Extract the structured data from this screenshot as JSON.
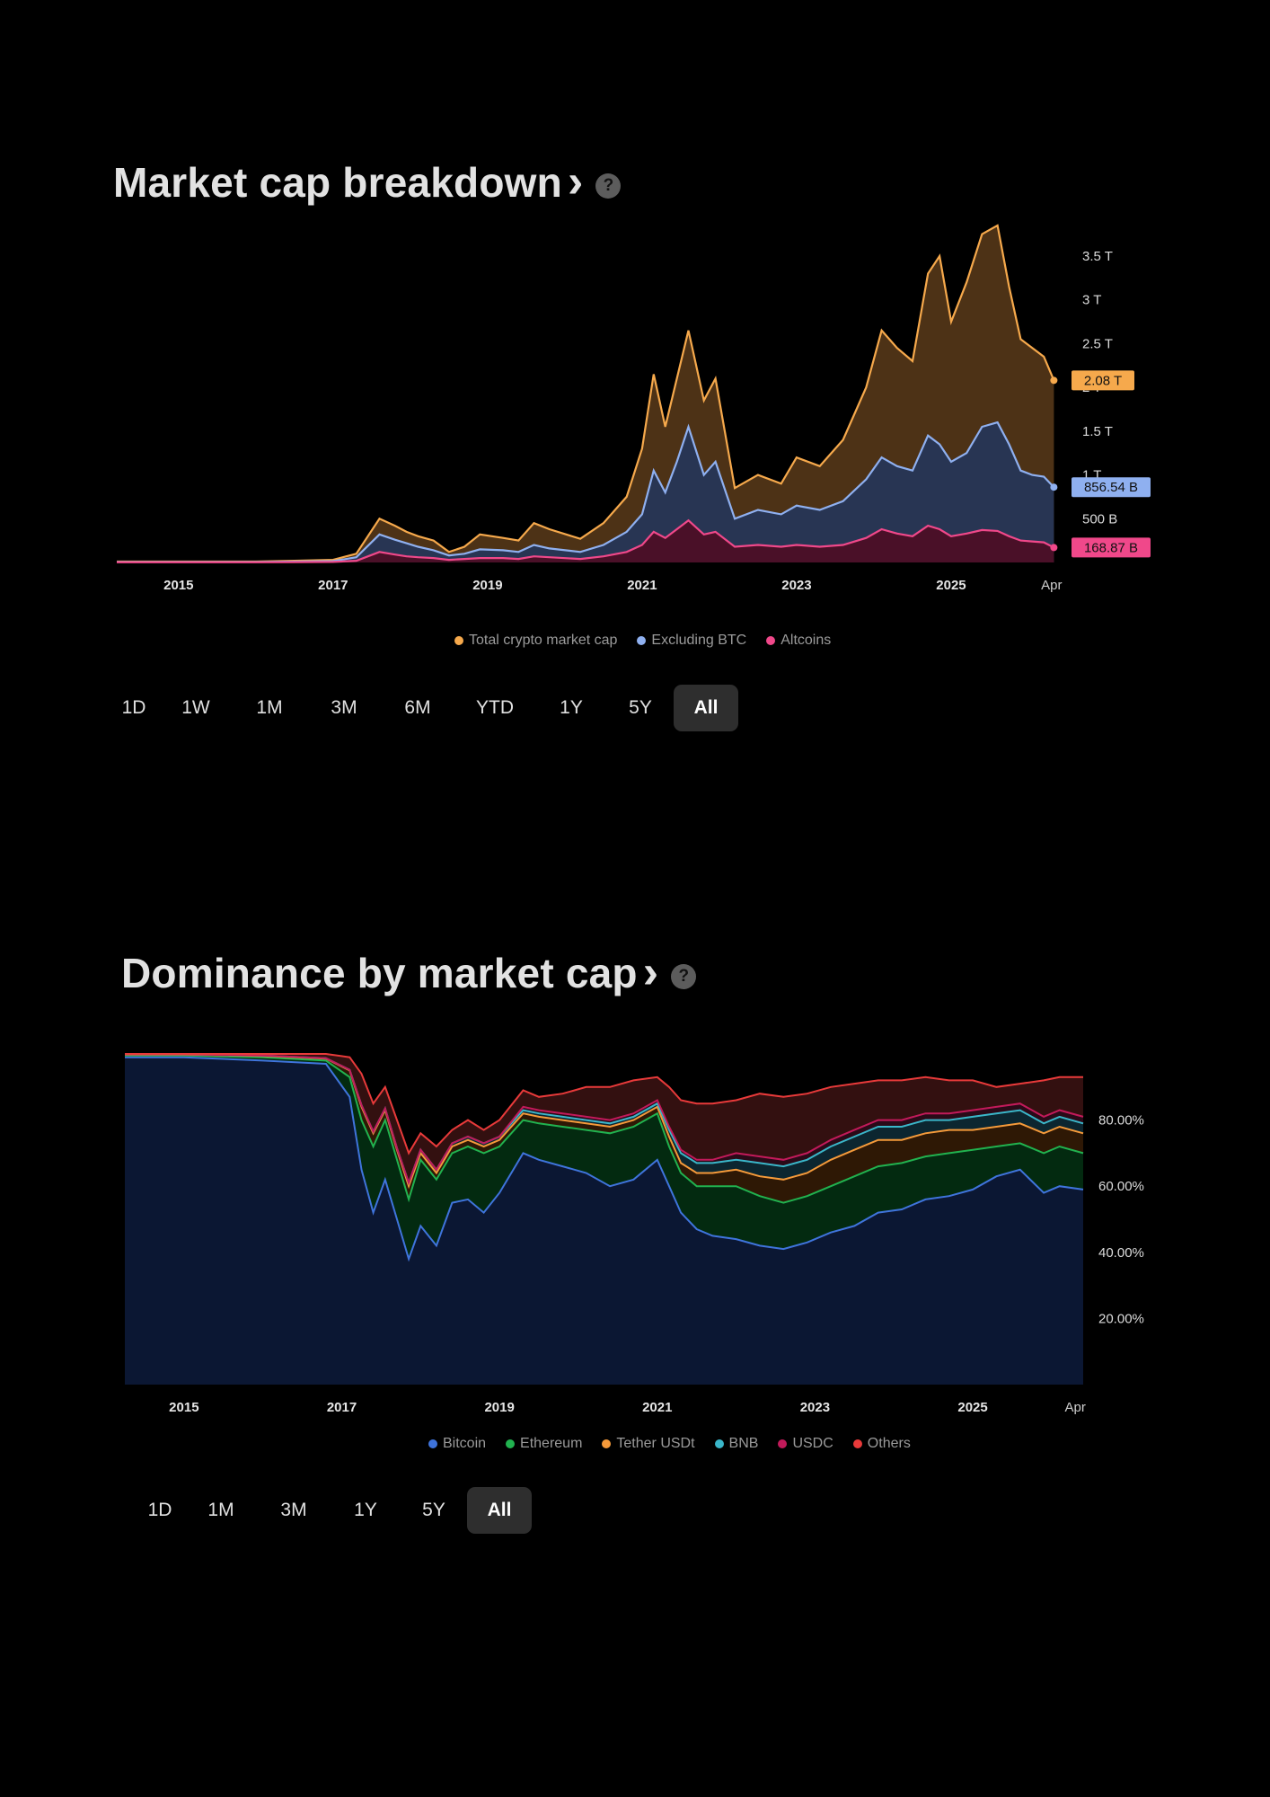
{
  "market_cap": {
    "title": "Market cap breakdown",
    "chevron": "›",
    "help": "?",
    "ranges": [
      "1D",
      "1W",
      "1M",
      "3M",
      "6M",
      "YTD",
      "1Y",
      "5Y",
      "All"
    ],
    "active_range": "All",
    "legend": [
      {
        "label": "Total crypto market cap",
        "color": "#f6a94c"
      },
      {
        "label": "Excluding BTC",
        "color": "#8fb0f0"
      },
      {
        "label": "Altcoins",
        "color": "#f0488a"
      }
    ]
  },
  "dominance": {
    "title": "Dominance by market cap",
    "chevron": "›",
    "help": "?",
    "ranges": [
      "1D",
      "1M",
      "3M",
      "1Y",
      "5Y",
      "All"
    ],
    "active_range": "All",
    "legend": [
      {
        "label": "Bitcoin",
        "color": "#3f74dc"
      },
      {
        "label": "Ethereum",
        "color": "#21b24f"
      },
      {
        "label": "Tether USDt",
        "color": "#f59a3a"
      },
      {
        "label": "BNB",
        "color": "#3ab6c9"
      },
      {
        "label": "USDC",
        "color": "#c21a5a"
      },
      {
        "label": "Others",
        "color": "#e83a3a"
      }
    ]
  },
  "chart_data": [
    {
      "type": "area",
      "xlim": [
        2014.2,
        2026.5
      ],
      "ylim": [
        0,
        3.9
      ],
      "y_ticks": [
        {
          "v": 0.5,
          "label": "500 B"
        },
        {
          "v": 1,
          "label": "1 T"
        },
        {
          "v": 1.5,
          "label": "1.5 T"
        },
        {
          "v": 2,
          "label": "2 T"
        },
        {
          "v": 2.5,
          "label": "2.5 T"
        },
        {
          "v": 3,
          "label": "3 T"
        },
        {
          "v": 3.5,
          "label": "3.5 T"
        }
      ],
      "x_ticks": [
        {
          "v": 2015,
          "label": "2015"
        },
        {
          "v": 2017,
          "label": "2017"
        },
        {
          "v": 2019,
          "label": "2019"
        },
        {
          "v": 2021,
          "label": "2021"
        },
        {
          "v": 2023,
          "label": "2023"
        },
        {
          "v": 2025,
          "label": "2025"
        },
        {
          "v": 2026.3,
          "label": "Apr"
        }
      ],
      "x": [
        2014.2,
        2015,
        2016,
        2016.5,
        2017,
        2017.3,
        2017.6,
        2017.8,
        2017.95,
        2018.1,
        2018.3,
        2018.5,
        2018.7,
        2018.9,
        2019.2,
        2019.4,
        2019.6,
        2019.8,
        2020.2,
        2020.5,
        2020.8,
        2021.0,
        2021.15,
        2021.3,
        2021.45,
        2021.6,
        2021.8,
        2021.95,
        2022.2,
        2022.5,
        2022.8,
        2023.0,
        2023.3,
        2023.6,
        2023.9,
        2024.1,
        2024.3,
        2024.5,
        2024.7,
        2024.85,
        2025.0,
        2025.2,
        2025.4,
        2025.6,
        2025.75,
        2025.9,
        2026.05,
        2026.2,
        2026.33
      ],
      "series": [
        {
          "name": "Total crypto market cap",
          "color": "#f6a94c",
          "values": [
            0.01,
            0.01,
            0.01,
            0.02,
            0.03,
            0.1,
            0.5,
            0.42,
            0.35,
            0.3,
            0.25,
            0.12,
            0.18,
            0.32,
            0.28,
            0.25,
            0.45,
            0.38,
            0.27,
            0.45,
            0.75,
            1.3,
            2.15,
            1.55,
            2.1,
            2.65,
            1.85,
            2.1,
            0.85,
            1.0,
            0.9,
            1.2,
            1.1,
            1.4,
            2.0,
            2.65,
            2.45,
            2.3,
            3.3,
            3.5,
            2.75,
            3.2,
            3.75,
            3.85,
            3.15,
            2.55,
            2.45,
            2.35,
            2.08
          ]
        },
        {
          "name": "Excluding BTC",
          "color": "#8fb0f0",
          "values": [
            0.005,
            0.005,
            0.005,
            0.01,
            0.015,
            0.06,
            0.32,
            0.26,
            0.22,
            0.18,
            0.14,
            0.08,
            0.1,
            0.15,
            0.14,
            0.12,
            0.2,
            0.16,
            0.12,
            0.2,
            0.35,
            0.55,
            1.05,
            0.8,
            1.15,
            1.55,
            1.0,
            1.15,
            0.5,
            0.6,
            0.55,
            0.65,
            0.6,
            0.7,
            0.95,
            1.2,
            1.1,
            1.05,
            1.45,
            1.35,
            1.15,
            1.25,
            1.55,
            1.6,
            1.35,
            1.05,
            1.0,
            0.98,
            0.86
          ]
        },
        {
          "name": "Altcoins",
          "color": "#f0488a",
          "values": [
            0.002,
            0.002,
            0.002,
            0.004,
            0.006,
            0.02,
            0.12,
            0.09,
            0.07,
            0.06,
            0.05,
            0.03,
            0.04,
            0.05,
            0.05,
            0.04,
            0.07,
            0.06,
            0.04,
            0.07,
            0.12,
            0.2,
            0.35,
            0.28,
            0.38,
            0.48,
            0.32,
            0.35,
            0.18,
            0.2,
            0.18,
            0.2,
            0.18,
            0.2,
            0.28,
            0.38,
            0.33,
            0.3,
            0.42,
            0.38,
            0.3,
            0.33,
            0.37,
            0.36,
            0.3,
            0.25,
            0.24,
            0.23,
            0.17
          ]
        }
      ],
      "end_labels": [
        {
          "series": "Total crypto market cap",
          "label": "2.08 T",
          "color": "#f6a94c"
        },
        {
          "series": "Excluding BTC",
          "label": "856.54 B",
          "color": "#8fb0f0"
        },
        {
          "series": "Altcoins",
          "label": "168.87 B",
          "color": "#f0488a"
        }
      ],
      "grid": false,
      "legend_position": "bottom"
    },
    {
      "type": "area",
      "stacked_cumulative": true,
      "xlim": [
        2014.25,
        2026.4
      ],
      "ylim": [
        0,
        100
      ],
      "y_ticks": [
        {
          "v": 20,
          "label": "20.00%"
        },
        {
          "v": 40,
          "label": "40.00%"
        },
        {
          "v": 60,
          "label": "60.00%"
        },
        {
          "v": 80,
          "label": "80.00%"
        }
      ],
      "x_ticks": [
        {
          "v": 2015,
          "label": "2015"
        },
        {
          "v": 2017,
          "label": "2017"
        },
        {
          "v": 2019,
          "label": "2019"
        },
        {
          "v": 2021,
          "label": "2021"
        },
        {
          "v": 2023,
          "label": "2023"
        },
        {
          "v": 2025,
          "label": "2025"
        },
        {
          "v": 2026.3,
          "label": "Apr"
        }
      ],
      "x": [
        2014.25,
        2015,
        2016,
        2016.8,
        2017.1,
        2017.25,
        2017.4,
        2017.55,
        2017.7,
        2017.85,
        2018.0,
        2018.2,
        2018.4,
        2018.6,
        2018.8,
        2019.0,
        2019.3,
        2019.5,
        2019.8,
        2020.1,
        2020.4,
        2020.7,
        2021.0,
        2021.15,
        2021.3,
        2021.5,
        2021.7,
        2022.0,
        2022.3,
        2022.6,
        2022.9,
        2023.2,
        2023.5,
        2023.8,
        2024.1,
        2024.4,
        2024.7,
        2025.0,
        2025.3,
        2025.6,
        2025.9,
        2026.1,
        2026.4
      ],
      "series": [
        {
          "name": "Bitcoin",
          "color": "#3f74dc",
          "fill": "#0b1733",
          "values": [
            99,
            99,
            98,
            97,
            87,
            65,
            52,
            62,
            50,
            38,
            48,
            42,
            55,
            56,
            52,
            58,
            70,
            68,
            66,
            64,
            60,
            62,
            68,
            60,
            52,
            47,
            45,
            44,
            42,
            41,
            43,
            46,
            48,
            52,
            53,
            56,
            57,
            59,
            63,
            65,
            58,
            60,
            59
          ]
        },
        {
          "name": "Ethereum",
          "color": "#21b24f",
          "fill": "#032a10",
          "values": [
            99.5,
            99.5,
            99,
            98,
            93,
            80,
            72,
            80,
            68,
            56,
            68,
            62,
            70,
            72,
            70,
            72,
            80,
            79,
            78,
            77,
            76,
            78,
            82,
            72,
            64,
            60,
            60,
            60,
            57,
            55,
            57,
            60,
            63,
            66,
            67,
            69,
            70,
            71,
            72,
            73,
            70,
            72,
            70
          ]
        },
        {
          "name": "Tether USDt",
          "color": "#f59a3a",
          "fill": "#2e1805",
          "values": [
            99.8,
            99.8,
            99.4,
            98.6,
            95,
            84,
            76,
            83,
            71,
            60,
            70,
            64,
            72,
            74,
            72,
            74,
            82,
            81,
            80,
            79,
            78,
            80,
            84,
            75,
            67,
            64,
            64,
            65,
            63,
            62,
            64,
            68,
            71,
            74,
            74,
            76,
            77,
            77,
            78,
            79,
            76,
            78,
            76
          ]
        },
        {
          "name": "BNB",
          "color": "#3ab6c9",
          "fill": "#0c2630",
          "values": [
            99.9,
            99.9,
            99.5,
            98.7,
            95.2,
            84.5,
            76.5,
            83.5,
            71.5,
            61,
            71,
            65,
            73,
            75,
            73,
            75,
            83,
            82,
            81,
            80,
            79,
            81,
            85,
            77,
            70,
            67,
            67,
            68,
            67,
            66,
            68,
            72,
            75,
            78,
            78,
            80,
            80,
            81,
            82,
            83,
            79,
            81,
            79
          ]
        },
        {
          "name": "USDC",
          "color": "#c21a5a",
          "fill": "#2a0a18",
          "values": [
            99.9,
            99.9,
            99.5,
            98.7,
            95.2,
            84.5,
            76.5,
            83.5,
            71.5,
            61,
            71,
            65,
            73,
            75,
            73,
            75,
            84,
            83,
            82,
            81,
            80,
            82,
            86,
            78,
            71,
            68,
            68,
            70,
            69,
            68,
            70,
            74,
            77,
            80,
            80,
            82,
            82,
            83,
            84,
            85,
            81,
            83,
            81
          ]
        },
        {
          "name": "Others",
          "color": "#e83a3a",
          "fill": "#331010",
          "values": [
            100,
            100,
            100,
            100,
            99,
            94,
            85,
            90,
            80,
            70,
            76,
            72,
            77,
            80,
            77,
            80,
            89,
            87,
            88,
            90,
            90,
            92,
            93,
            90,
            86,
            85,
            85,
            86,
            88,
            87,
            88,
            90,
            91,
            92,
            92,
            93,
            92,
            92,
            90,
            91,
            92,
            93,
            93
          ]
        }
      ],
      "grid": false,
      "legend_position": "bottom"
    }
  ]
}
